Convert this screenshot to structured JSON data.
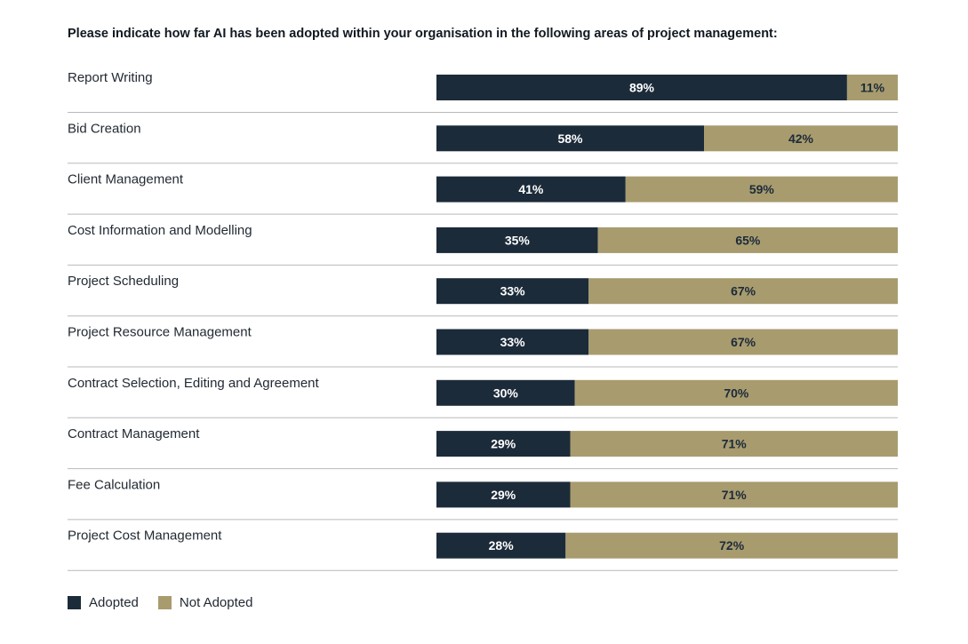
{
  "chart_data": {
    "type": "bar",
    "orientation": "horizontal",
    "stacked": true,
    "title": "Please indicate how far AI has been adopted within your organisation in the following areas of project management:",
    "categories": [
      "Report Writing",
      "Bid Creation",
      "Client Management",
      "Cost Information and Modelling",
      "Project Scheduling",
      "Project Resource Management",
      "Contract Selection, Editing and Agreement",
      "Contract Management",
      "Fee Calculation",
      "Project Cost Management"
    ],
    "series": [
      {
        "name": "Adopted",
        "color": "#1c2b3a",
        "label_color": "#ffffff",
        "values": [
          89,
          58,
          41,
          35,
          33,
          33,
          30,
          29,
          29,
          28
        ]
      },
      {
        "name": "Not Adopted",
        "color": "#a89b6e",
        "label_color": "#1c2b3a",
        "values": [
          11,
          42,
          59,
          65,
          67,
          67,
          70,
          71,
          71,
          72
        ]
      }
    ],
    "value_suffix": "%",
    "xlim": [
      0,
      100
    ],
    "legend_position": "bottom-left"
  }
}
